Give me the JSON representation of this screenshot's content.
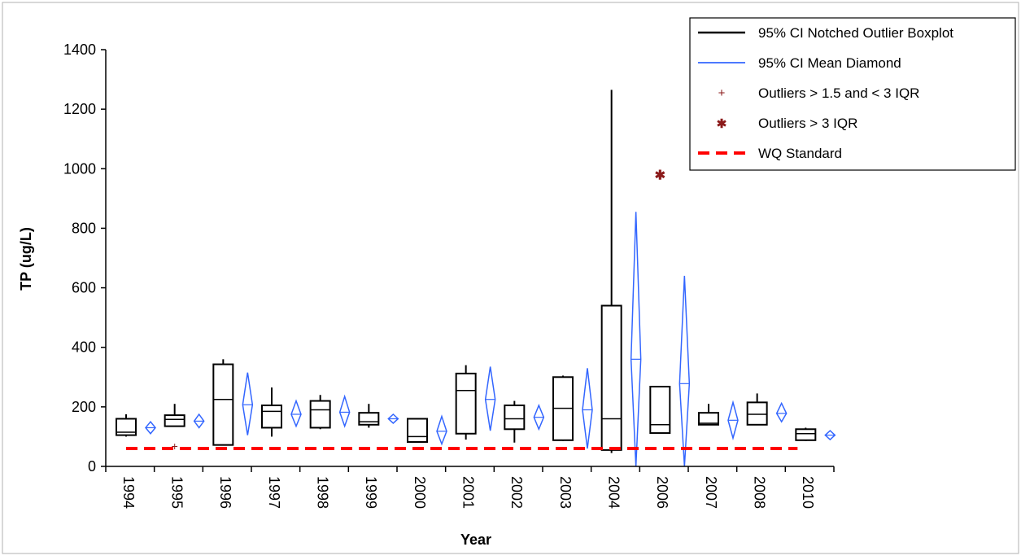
{
  "chart_data": {
    "type": "boxplot",
    "xlabel": "Year",
    "ylabel": "TP (ug/L)",
    "ylim": [
      0,
      1400
    ],
    "yticks": [
      0,
      200,
      400,
      600,
      800,
      1000,
      1200,
      1400
    ],
    "categories": [
      "1994",
      "1995",
      "1996",
      "1997",
      "1998",
      "1999",
      "2000",
      "2001",
      "2002",
      "2003",
      "2004",
      "2006",
      "2007",
      "2008",
      "2010"
    ],
    "wq_standard": 60,
    "legend": {
      "placement": "top-right",
      "items": [
        {
          "label": "95% CI Notched Outlier Boxplot",
          "kind": "line",
          "color": "#000000"
        },
        {
          "label": "95% CI Mean Diamond",
          "kind": "line",
          "color": "#3366ff"
        },
        {
          "label": "Outliers > 1.5 and < 3 IQR",
          "kind": "plus",
          "color": "#8b1a1a"
        },
        {
          "label": "Outliers > 3 IQR",
          "kind": "star",
          "color": "#8b1a1a"
        },
        {
          "label": "WQ Standard",
          "kind": "dash",
          "color": "#ff0000"
        }
      ]
    },
    "boxes": [
      {
        "year": "1994",
        "whisker_low": 100,
        "q1": 105,
        "median": 115,
        "q3": 160,
        "whisker_high": 175,
        "diamond_low": 110,
        "mean": 130,
        "diamond_high": 150
      },
      {
        "year": "1995",
        "whisker_low": 135,
        "q1": 135,
        "median": 158,
        "q3": 172,
        "whisker_high": 210,
        "diamond_low": 130,
        "mean": 152,
        "diamond_high": 175,
        "outliers_mild": [
          68
        ]
      },
      {
        "year": "1996",
        "whisker_low": 70,
        "q1": 72,
        "median": 225,
        "q3": 343,
        "whisker_high": 360,
        "diamond_low": 105,
        "mean": 207,
        "diamond_high": 315
      },
      {
        "year": "1997",
        "whisker_low": 100,
        "q1": 130,
        "median": 185,
        "q3": 205,
        "whisker_high": 265,
        "diamond_low": 135,
        "mean": 175,
        "diamond_high": 220
      },
      {
        "year": "1998",
        "whisker_low": 125,
        "q1": 130,
        "median": 190,
        "q3": 220,
        "whisker_high": 240,
        "diamond_low": 135,
        "mean": 182,
        "diamond_high": 235
      },
      {
        "year": "1999",
        "whisker_low": 130,
        "q1": 140,
        "median": 150,
        "q3": 180,
        "whisker_high": 210,
        "diamond_low": 145,
        "mean": 160,
        "diamond_high": 175
      },
      {
        "year": "2000",
        "whisker_low": 80,
        "q1": 82,
        "median": 100,
        "q3": 160,
        "whisker_high": 160,
        "diamond_low": 75,
        "mean": 118,
        "diamond_high": 168
      },
      {
        "year": "2001",
        "whisker_low": 90,
        "q1": 110,
        "median": 255,
        "q3": 312,
        "whisker_high": 340,
        "diamond_low": 120,
        "mean": 225,
        "diamond_high": 335
      },
      {
        "year": "2002",
        "whisker_low": 80,
        "q1": 125,
        "median": 160,
        "q3": 205,
        "whisker_high": 220,
        "diamond_low": 125,
        "mean": 165,
        "diamond_high": 205
      },
      {
        "year": "2003",
        "whisker_low": 85,
        "q1": 88,
        "median": 195,
        "q3": 300,
        "whisker_high": 305,
        "diamond_low": 60,
        "mean": 190,
        "diamond_high": 330
      },
      {
        "year": "2004",
        "whisker_low": 45,
        "q1": 55,
        "median": 160,
        "q3": 540,
        "whisker_high": 1265,
        "diamond_low": 0,
        "mean": 360,
        "diamond_high": 855
      },
      {
        "year": "2006",
        "whisker_low": 110,
        "q1": 112,
        "median": 140,
        "q3": 268,
        "whisker_high": 268,
        "diamond_low": 0,
        "mean": 278,
        "diamond_high": 640,
        "outliers_extreme": [
          980
        ]
      },
      {
        "year": "2007",
        "whisker_low": 140,
        "q1": 140,
        "median": 145,
        "q3": 180,
        "whisker_high": 210,
        "diamond_low": 95,
        "mean": 155,
        "diamond_high": 215
      },
      {
        "year": "2008",
        "whisker_low": 140,
        "q1": 140,
        "median": 175,
        "q3": 215,
        "whisker_high": 245,
        "diamond_low": 150,
        "mean": 178,
        "diamond_high": 212
      },
      {
        "year": "2010",
        "whisker_low": 85,
        "q1": 88,
        "median": 110,
        "q3": 125,
        "whisker_high": 130,
        "diamond_low": 90,
        "mean": 105,
        "diamond_high": 120
      }
    ]
  }
}
